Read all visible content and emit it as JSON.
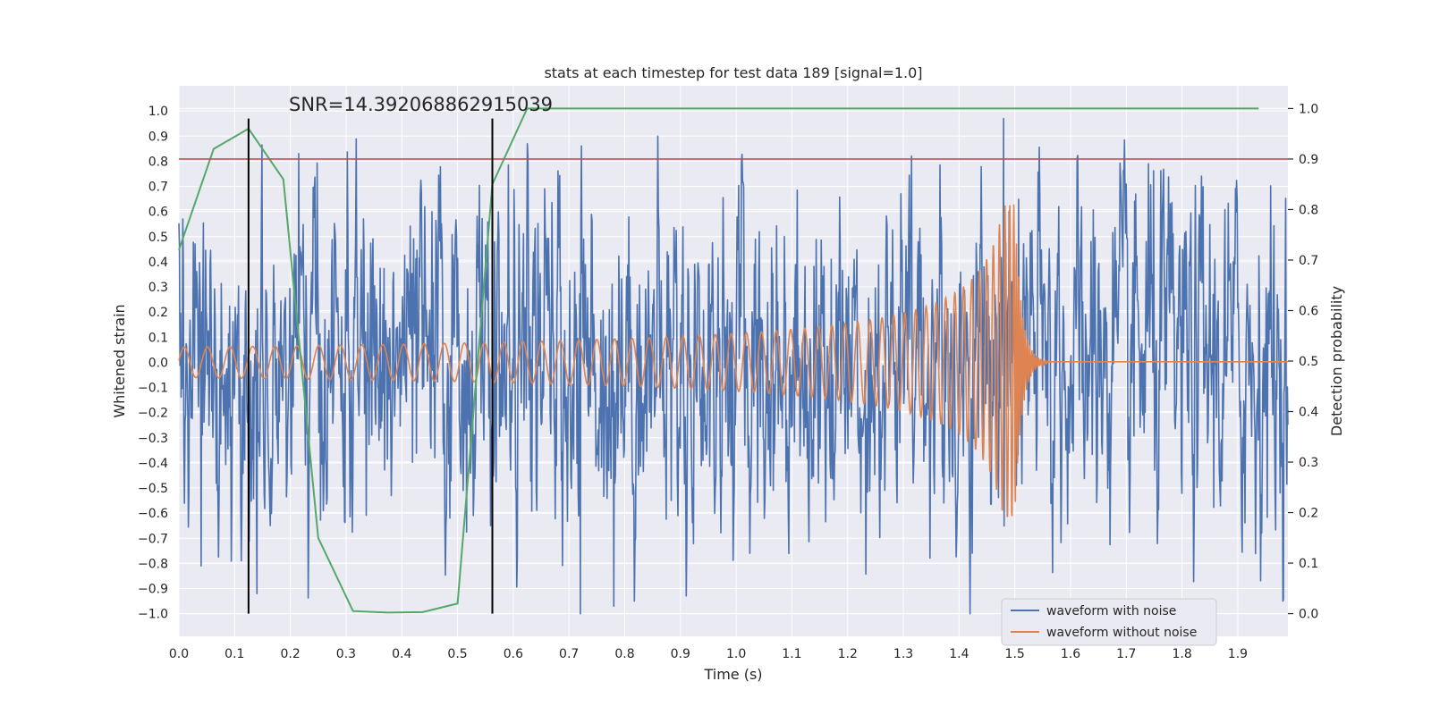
{
  "chart_data": {
    "type": "line",
    "title": "stats at each timestep for test data 189 [signal=1.0]",
    "xlabel": "Time (s)",
    "ylabel": "Whitened strain",
    "y2label": "Detection probability",
    "annotation": "SNR=14.392068862915039",
    "xlim": [
      0.0,
      1.99
    ],
    "ylim": [
      -1.09,
      1.1
    ],
    "y2lim": [
      -0.045,
      1.045
    ],
    "x_ticks": [
      0.0,
      0.1,
      0.2,
      0.3,
      0.4,
      0.5,
      0.6,
      0.7,
      0.8,
      0.9,
      1.0,
      1.1,
      1.2,
      1.3,
      1.4,
      1.5,
      1.6,
      1.7,
      1.8,
      1.9
    ],
    "x_tick_labels": [
      "0.0",
      "0.1",
      "0.2",
      "0.3",
      "0.4",
      "0.5",
      "0.6",
      "0.7",
      "0.8",
      "0.9",
      "1.0",
      "1.1",
      "1.2",
      "1.3",
      "1.4",
      "1.5",
      "1.6",
      "1.7",
      "1.8",
      "1.9"
    ],
    "y_ticks": [
      1.0,
      0.9,
      0.8,
      0.7,
      0.6,
      0.5,
      0.4,
      0.3,
      0.2,
      0.1,
      0.0,
      -0.1,
      -0.2,
      -0.3,
      -0.4,
      -0.5,
      -0.6,
      -0.7,
      -0.8,
      -0.9,
      -1.0
    ],
    "y_tick_labels": [
      "1.0",
      "0.9",
      "0.8",
      "0.7",
      "0.6",
      "0.5",
      "0.4",
      "0.3",
      "0.2",
      "0.1",
      "0.0",
      "−0.1",
      "−0.2",
      "−0.3",
      "−0.4",
      "−0.5",
      "−0.6",
      "−0.7",
      "−0.8",
      "−0.9",
      "−1.0"
    ],
    "y2_ticks": [
      1.0,
      0.9,
      0.8,
      0.7,
      0.6,
      0.5,
      0.4,
      0.3,
      0.2,
      0.1,
      0.0
    ],
    "y2_tick_labels": [
      "1.0",
      "0.9",
      "0.8",
      "0.7",
      "0.6",
      "0.5",
      "0.4",
      "0.3",
      "0.2",
      "0.1",
      "0.0"
    ],
    "grid": true,
    "legend_position": "lower-right",
    "colors": {
      "noise": "#4c72b0",
      "signal": "#dd8452",
      "probability": "#55a868",
      "threshold": "#c44e52",
      "markers": "#000000",
      "background": "#eaeaf2",
      "grid": "#ffffff"
    },
    "series": [
      {
        "name": "waveform with noise",
        "axis": "left",
        "description_stats": {
          "mean": 0.0,
          "std": 0.33,
          "t_start": 0.0,
          "t_end": 1.99,
          "samples": 1990
        },
        "peaks": [
          {
            "x": 0.04,
            "y": -0.81
          },
          {
            "x": 0.14,
            "y": -0.92
          },
          {
            "x": 0.215,
            "y": 0.83
          },
          {
            "x": 0.72,
            "y": -1.0
          },
          {
            "x": 0.78,
            "y": -0.97
          },
          {
            "x": 1.42,
            "y": -1.0
          },
          {
            "x": 1.48,
            "y": 0.97
          },
          {
            "x": 1.74,
            "y": 0.79
          }
        ]
      },
      {
        "name": "waveform without noise",
        "axis": "left",
        "chirp": {
          "t_start": 0.0,
          "t_merge": 1.5,
          "t_ringdown_end": 1.56,
          "amp_start": 0.06,
          "amp_peak": 0.63,
          "amp_min_peak": -0.63
        }
      },
      {
        "name": "detection probability",
        "axis": "right",
        "x": [
          0.0,
          0.0625,
          0.125,
          0.1875,
          0.25,
          0.3125,
          0.375,
          0.4375,
          0.5,
          0.5625,
          0.625,
          0.6875,
          1.9375
        ],
        "y": [
          0.72,
          0.92,
          0.96,
          0.86,
          0.15,
          0.005,
          0.002,
          0.003,
          0.02,
          0.85,
          1.0,
          1.0,
          1.0
        ]
      }
    ],
    "threshold_y": 0.9,
    "vertical_markers_x": [
      0.125,
      0.5625
    ],
    "vertical_markers_y_range": [
      -1.0,
      0.97
    ]
  }
}
